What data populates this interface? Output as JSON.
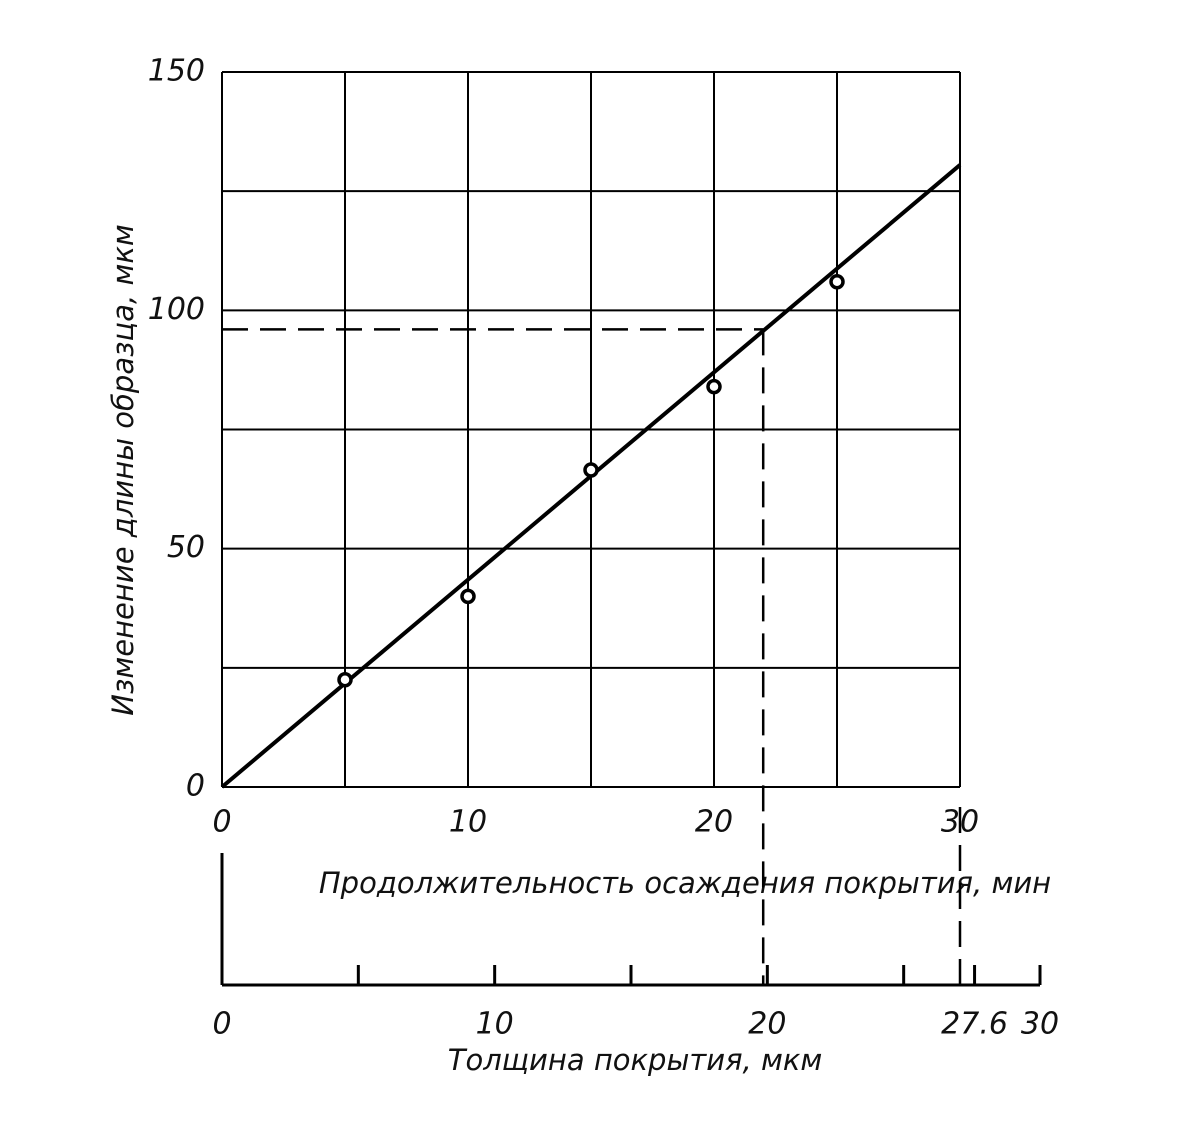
{
  "chart_data": {
    "type": "scatter",
    "ylabel": "Изменение длины образца, мкм",
    "xlabel": "Продолжительность осаждения покрытия, мин",
    "x": [
      5,
      10,
      15,
      20,
      25
    ],
    "values": [
      22.5,
      40,
      66.5,
      84,
      106
    ],
    "fit_line": {
      "x": [
        0,
        30
      ],
      "values": [
        0,
        130.5
      ]
    },
    "xlim": [
      0,
      30
    ],
    "xticks": [
      0,
      10,
      20,
      30
    ],
    "x_grid": [
      0,
      5,
      10,
      15,
      20,
      25,
      30
    ],
    "ylim": [
      0,
      150
    ],
    "yticks": [
      0,
      50,
      100,
      150
    ],
    "y_grid": [
      0,
      25,
      50,
      75,
      100,
      125,
      150
    ],
    "guide": {
      "x": 22,
      "y": 96
    },
    "x2label": "Толщина покрытия, мкм",
    "x2lim": [
      0,
      30
    ],
    "x2ticks": [
      0,
      10,
      20,
      27.6,
      30
    ],
    "x2minor": [
      5,
      15,
      25
    ],
    "color": "#000000"
  }
}
